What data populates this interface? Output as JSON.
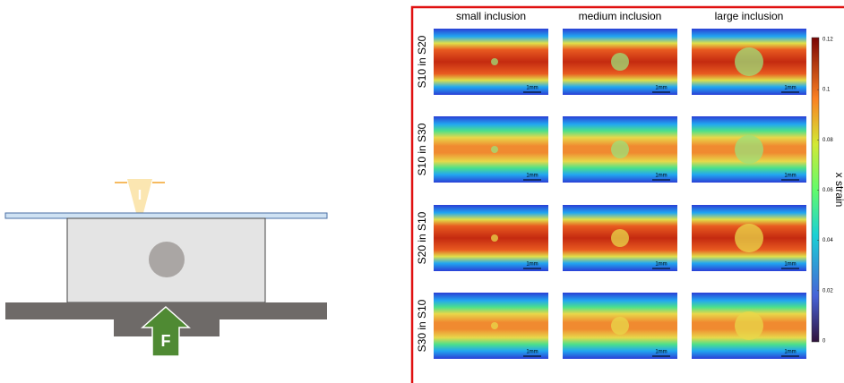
{
  "diagram": {
    "indenter_label": "I",
    "force_label": "F"
  },
  "figure": {
    "columns": [
      "small inclusion",
      "medium inclusion",
      "large inclusion"
    ],
    "rows": [
      "S10 in S20",
      "S10 in S30",
      "S20 in S10",
      "S30 in S10"
    ],
    "scale_bar": "1mm",
    "colorbar": {
      "label": "x strain",
      "ylim": [
        0,
        0.12
      ],
      "ticks": [
        0.12,
        0.1,
        0.08,
        0.06,
        0.04,
        0.02,
        0
      ]
    }
  }
}
